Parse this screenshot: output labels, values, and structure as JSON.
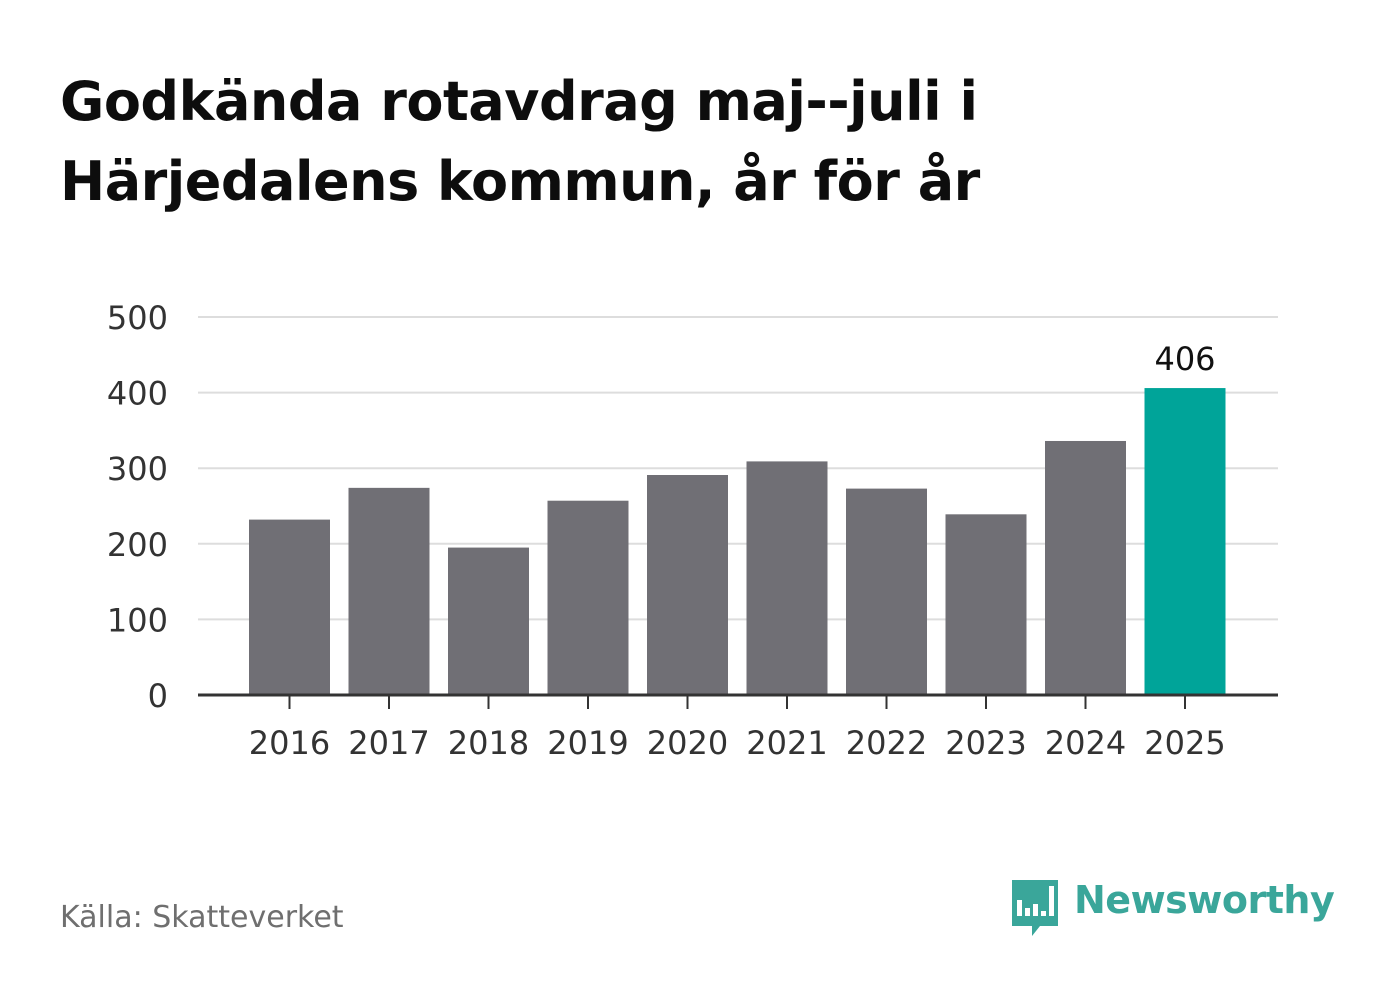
{
  "title_lines": [
    "Godkända rotavdrag maj--juli i",
    "Härjedalens kommun, år för år"
  ],
  "source": "Källa: Skatteverket",
  "brand": {
    "name": "Newsworthy",
    "icon": "newsworthy-bar-chart-bubble-icon",
    "color": "#3aa69a"
  },
  "colors": {
    "bar": "#706f75",
    "highlight": "#00a499",
    "grid": "#dddddd",
    "axis": "#333333",
    "text": "#333333"
  },
  "chart_data": {
    "type": "bar",
    "categories": [
      "2016",
      "2017",
      "2018",
      "2019",
      "2020",
      "2021",
      "2022",
      "2023",
      "2024",
      "2025"
    ],
    "values": [
      232,
      274,
      195,
      257,
      291,
      309,
      273,
      239,
      336,
      406
    ],
    "highlight_index": 9,
    "data_labels": [
      {
        "index": 9,
        "text": "406"
      }
    ],
    "yticks": [
      "0",
      "100",
      "200",
      "300",
      "400",
      "500"
    ],
    "ylim": [
      0,
      500
    ],
    "grid": true
  }
}
